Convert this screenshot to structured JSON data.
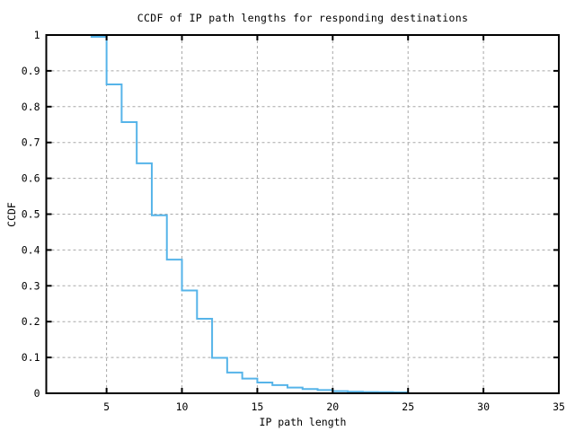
{
  "chart_data": {
    "type": "line",
    "subtype": "step-ccdf",
    "title": "CCDF of IP path lengths for responding destinations",
    "xlabel": "IP path length",
    "ylabel": "CCDF",
    "xlim": [
      1,
      35
    ],
    "ylim": [
      0,
      1
    ],
    "x_ticks": [
      5,
      10,
      15,
      20,
      25,
      30,
      35
    ],
    "x_tick_labels": [
      "5",
      "10",
      "15",
      "20",
      "25",
      "30",
      "35"
    ],
    "y_ticks": [
      0,
      0.1,
      0.2,
      0.3,
      0.4,
      0.5,
      0.6,
      0.7,
      0.8,
      0.9,
      1
    ],
    "y_tick_labels": [
      "0",
      "0.1",
      "0.2",
      "0.3",
      "0.4",
      "0.5",
      "0.6",
      "0.7",
      "0.8",
      "0.9",
      "1"
    ],
    "grid": "dashed gridlines at every tick, both axes",
    "legend": "none",
    "line_color": "#56B4E9",
    "grid_color": "#A8A8A8",
    "border_color": "#000000",
    "background_color": "#FFFFFF",
    "points": [
      [
        3,
        1.0
      ],
      [
        4,
        0.995
      ],
      [
        5,
        0.862
      ],
      [
        6,
        0.757
      ],
      [
        7,
        0.642
      ],
      [
        8,
        0.497
      ],
      [
        9,
        0.373
      ],
      [
        10,
        0.287
      ],
      [
        11,
        0.208
      ],
      [
        12,
        0.099
      ],
      [
        13,
        0.058
      ],
      [
        14,
        0.041
      ],
      [
        15,
        0.03
      ],
      [
        16,
        0.023
      ],
      [
        17,
        0.016
      ],
      [
        18,
        0.012
      ],
      [
        19,
        0.009
      ],
      [
        20,
        0.006
      ],
      [
        21,
        0.0045
      ],
      [
        22,
        0.0035
      ],
      [
        23,
        0.003
      ],
      [
        24,
        0.0025
      ],
      [
        25,
        0.002
      ]
    ]
  }
}
